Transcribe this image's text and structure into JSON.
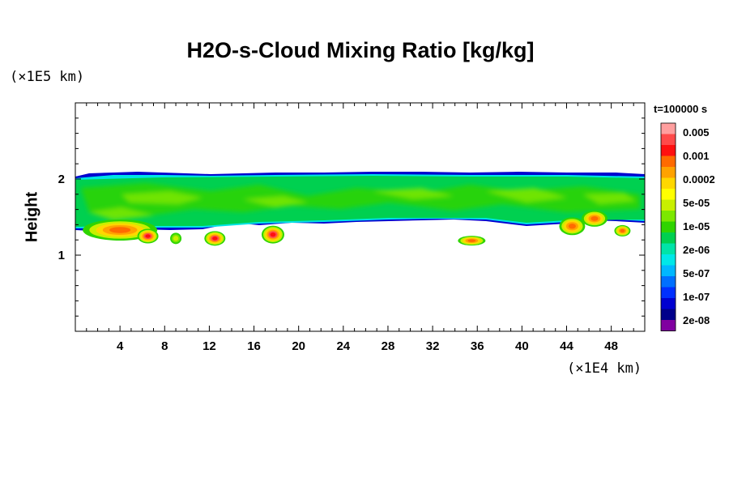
{
  "chart_data": {
    "type": "heatmap",
    "title": "H2O-s-Cloud Mixing Ratio [kg/kg]",
    "xlabel": "",
    "ylabel": "Height",
    "x_unit_label": "(×1E4 km)",
    "y_unit_label": "(×1E5 km)",
    "x_ticks": [
      4,
      8,
      12,
      16,
      20,
      24,
      28,
      32,
      36,
      40,
      44,
      48
    ],
    "y_ticks": [
      1,
      2
    ],
    "xlim": [
      0,
      51
    ],
    "ylim": [
      0,
      3
    ],
    "time_label": "t=100000 s",
    "colorbar": {
      "labels": [
        "0.005",
        "0.001",
        "0.0002",
        "5e-05",
        "1e-05",
        "2e-06",
        "5e-07",
        "1e-07",
        "2e-08"
      ],
      "colors": [
        "#ff9f9f",
        "#ff4a4a",
        "#ff1010",
        "#ff6a00",
        "#ffa200",
        "#ffd700",
        "#ffff00",
        "#c8f000",
        "#7ce800",
        "#2fd400",
        "#00d050",
        "#00e4a8",
        "#00e8e8",
        "#00b8ff",
        "#0070ff",
        "#0030ff",
        "#0000d0",
        "#00008a",
        "#8000a0"
      ]
    },
    "cloud_layer": {
      "top_height": 2.05,
      "base_height": 1.45,
      "patches": [
        {
          "x": 4.0,
          "y": 1.33,
          "level": "0.0002"
        },
        {
          "x": 6.5,
          "y": 1.25,
          "level": "0.001"
        },
        {
          "x": 9.0,
          "y": 1.22,
          "level": "1e-05"
        },
        {
          "x": 12.5,
          "y": 1.22,
          "level": "0.001"
        },
        {
          "x": 17.7,
          "y": 1.27,
          "level": "0.001"
        },
        {
          "x": 35.5,
          "y": 1.19,
          "level": "0.0002"
        },
        {
          "x": 44.5,
          "y": 1.38,
          "level": "0.0002"
        },
        {
          "x": 46.5,
          "y": 1.48,
          "level": "0.0002"
        },
        {
          "x": 49.0,
          "y": 1.32,
          "level": "0.0002"
        }
      ]
    }
  }
}
